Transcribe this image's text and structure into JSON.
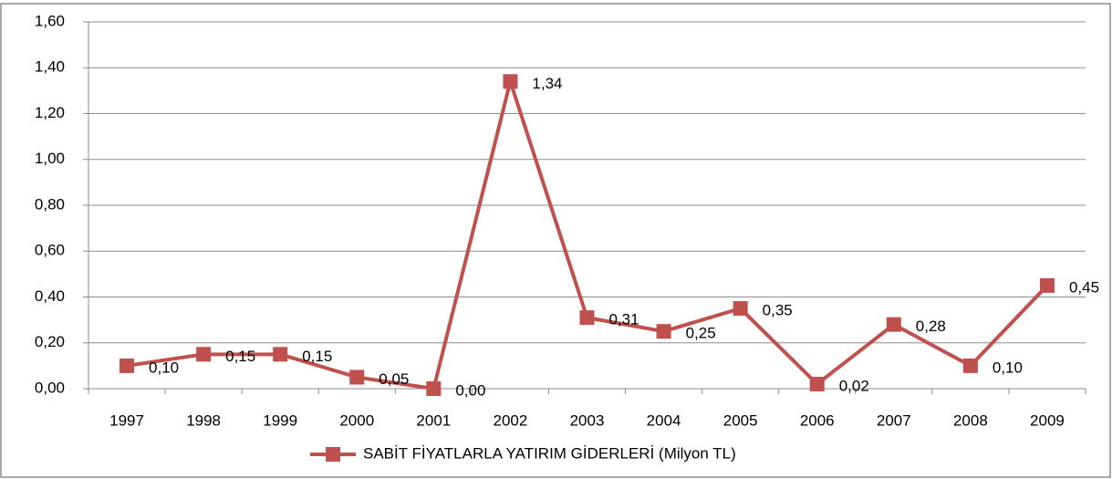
{
  "chart_data": {
    "type": "line",
    "categories": [
      "1997",
      "1998",
      "1999",
      "2000",
      "2001",
      "2002",
      "2003",
      "2004",
      "2005",
      "2006",
      "2007",
      "2008",
      "2009"
    ],
    "series": [
      {
        "name": "SABİT FİYATLARLA YATIRIM GİDERLERİ (Milyon TL)",
        "color": "#c0504d",
        "values": [
          0.1,
          0.15,
          0.15,
          0.05,
          0.0,
          1.34,
          0.31,
          0.25,
          0.35,
          0.02,
          0.28,
          0.1,
          0.45
        ],
        "value_labels": [
          "0,10",
          "0,15",
          "0,15",
          "0,05",
          "0,00",
          "1,34",
          "0,31",
          "0,25",
          "0,35",
          "0,02",
          "0,28",
          "0,10",
          "0,45"
        ]
      }
    ],
    "ylim": [
      0,
      1.6
    ],
    "yticks": [
      {
        "value": 0,
        "label": "0,00"
      },
      {
        "value": 0.2,
        "label": "0,20"
      },
      {
        "value": 0.4,
        "label": "0,40"
      },
      {
        "value": 0.6,
        "label": "0,60"
      },
      {
        "value": 0.8,
        "label": "0,80"
      },
      {
        "value": 1.0,
        "label": "1,00"
      },
      {
        "value": 1.2,
        "label": "1,20"
      },
      {
        "value": 1.4,
        "label": "1,40"
      },
      {
        "value": 1.6,
        "label": "1,60"
      }
    ],
    "grid": true,
    "legend": "bottom"
  }
}
